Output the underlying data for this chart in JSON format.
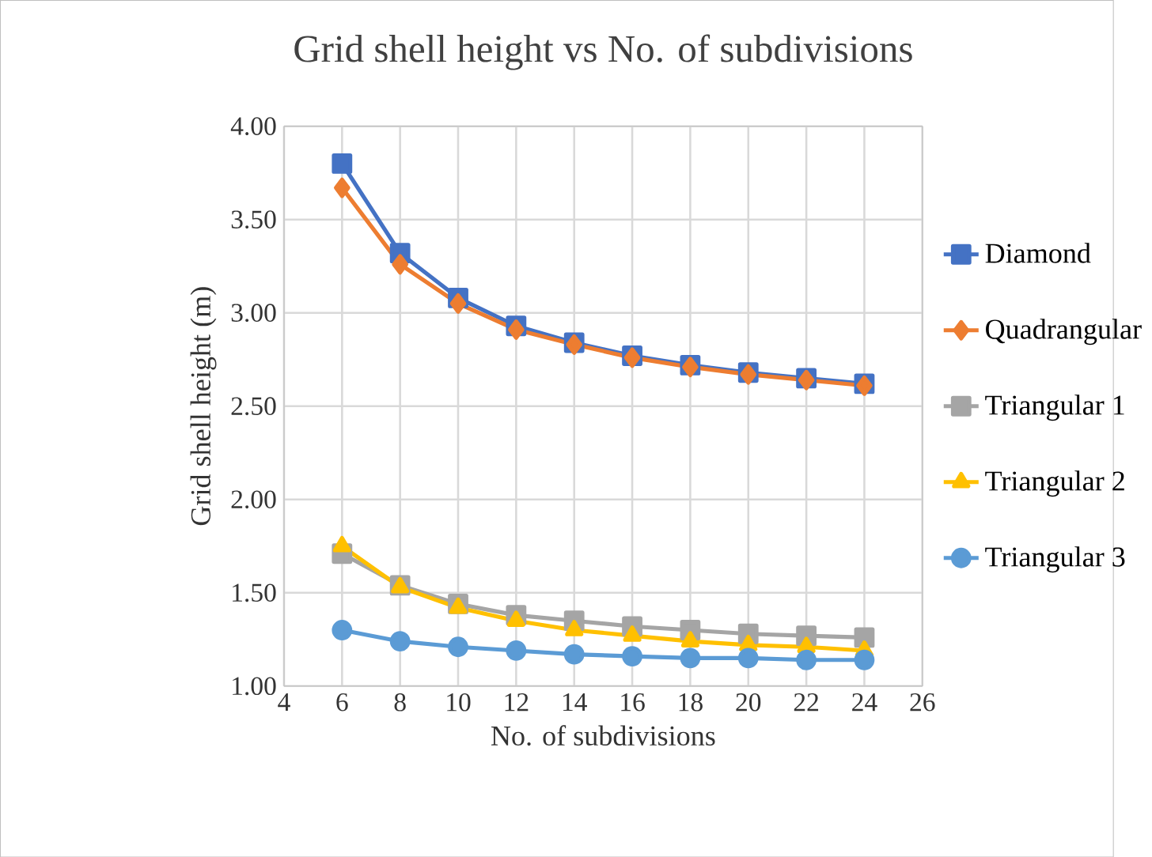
{
  "chart_data": {
    "type": "line",
    "title": "Grid shell height vs No. of subdivisions",
    "xlabel": "No. of subdivisions",
    "ylabel": "Grid shell height (m)",
    "x": [
      6,
      8,
      10,
      12,
      14,
      16,
      18,
      20,
      22,
      24
    ],
    "series": [
      {
        "name": "Diamond",
        "color": "#4472c4",
        "marker": "square",
        "values": [
          3.8,
          3.32,
          3.08,
          2.93,
          2.84,
          2.77,
          2.72,
          2.68,
          2.65,
          2.62
        ]
      },
      {
        "name": "Quadrangular",
        "color": "#ed7d31",
        "marker": "diamond",
        "values": [
          3.67,
          3.26,
          3.05,
          2.91,
          2.83,
          2.76,
          2.71,
          2.67,
          2.64,
          2.61
        ]
      },
      {
        "name": "Triangular 1",
        "color": "#a5a5a5",
        "marker": "square",
        "values": [
          1.71,
          1.54,
          1.44,
          1.38,
          1.35,
          1.32,
          1.3,
          1.28,
          1.27,
          1.26
        ]
      },
      {
        "name": "Triangular 2",
        "color": "#ffc000",
        "marker": "triangle",
        "values": [
          1.75,
          1.53,
          1.42,
          1.35,
          1.3,
          1.27,
          1.24,
          1.22,
          1.21,
          1.19
        ]
      },
      {
        "name": "Triangular 3",
        "color": "#5b9bd5",
        "marker": "circle",
        "values": [
          1.3,
          1.24,
          1.21,
          1.19,
          1.17,
          1.16,
          1.15,
          1.15,
          1.14,
          1.14
        ]
      }
    ],
    "xlim": [
      4,
      26
    ],
    "xticks": [
      4,
      6,
      8,
      10,
      12,
      14,
      16,
      18,
      20,
      22,
      24,
      26
    ],
    "ylim": [
      1.0,
      4.0
    ],
    "yticks": [
      {
        "value": 1.0,
        "label": "1.00"
      },
      {
        "value": 1.5,
        "label": "1.50"
      },
      {
        "value": 2.0,
        "label": "2.00"
      },
      {
        "value": 2.5,
        "label": "2.50"
      },
      {
        "value": 3.0,
        "label": "3.00"
      },
      {
        "value": 3.5,
        "label": "3.50"
      },
      {
        "value": 4.0,
        "label": "4.00"
      }
    ],
    "grid": true,
    "legend": "right",
    "line_style": "solid"
  }
}
